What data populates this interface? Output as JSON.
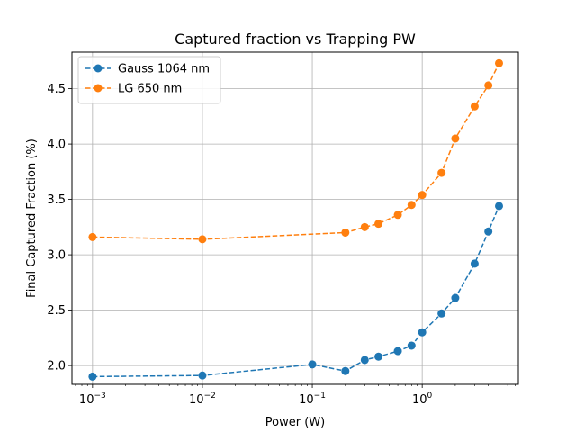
{
  "chart_data": {
    "type": "line",
    "title": "Captured fraction vs Trapping PW",
    "xlabel": "Power (W)",
    "ylabel": "Final Captured Fraction (%)",
    "xscale": "log",
    "xlim": [
      0.00065,
      7.5
    ],
    "ylim": [
      1.83,
      4.83
    ],
    "grid": true,
    "legend_position": "top-left",
    "x_ticks": [
      {
        "value": 0.001,
        "base": "10",
        "exp": "−3"
      },
      {
        "value": 0.01,
        "base": "10",
        "exp": "−2"
      },
      {
        "value": 0.1,
        "base": "10",
        "exp": "−1"
      },
      {
        "value": 1,
        "base": "10",
        "exp": "0"
      }
    ],
    "y_ticks": [
      "2.0",
      "2.5",
      "3.0",
      "3.5",
      "4.0",
      "4.5"
    ],
    "series": [
      {
        "name": "Gauss 1064 nm",
        "color": "#1f77b4",
        "line_style": "dashed",
        "marker": "circle",
        "x": [
          0.001,
          0.01,
          0.1,
          0.2,
          0.3,
          0.4,
          0.6,
          0.8,
          1.0,
          1.5,
          2.0,
          3.0,
          4.0,
          5.0
        ],
        "y": [
          1.9,
          1.91,
          2.01,
          1.95,
          2.05,
          2.08,
          2.13,
          2.18,
          2.3,
          2.47,
          2.61,
          2.92,
          3.21,
          3.44
        ]
      },
      {
        "name": "LG 650 nm",
        "color": "#ff7f0e",
        "line_style": "dashed",
        "marker": "circle",
        "x": [
          0.001,
          0.01,
          0.2,
          0.3,
          0.4,
          0.6,
          0.8,
          1.0,
          1.5,
          2.0,
          3.0,
          4.0,
          5.0
        ],
        "y": [
          3.16,
          3.14,
          3.2,
          3.25,
          3.28,
          3.36,
          3.45,
          3.54,
          3.74,
          4.05,
          4.34,
          4.53,
          4.73
        ]
      }
    ]
  }
}
